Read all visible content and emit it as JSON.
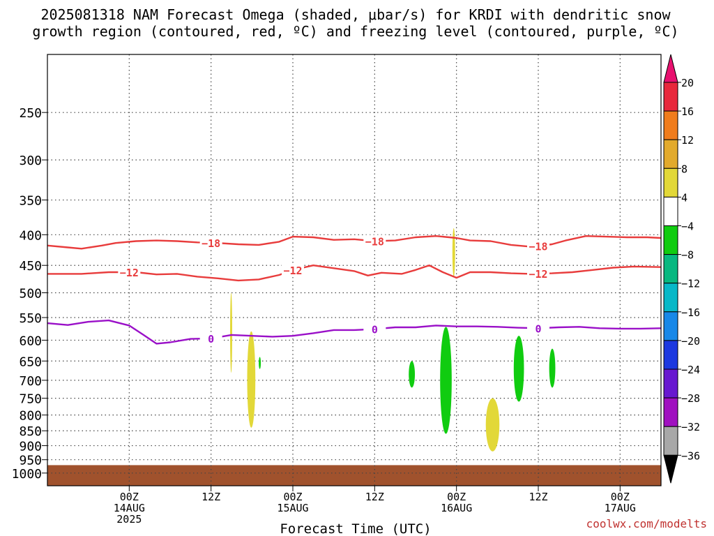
{
  "title": {
    "line1": "2025081318 NAM Forecast Omega (shaded, μbar/s) for KRDI with dendritic snow",
    "line2": "growth region (contoured, red, ºC) and freezing level (contoured, purple, ºC)"
  },
  "footer": {
    "xlabel": "Forecast Time (UTC)",
    "credit": "coolwx.com/modelts"
  },
  "chart_data": {
    "type": "heatmap",
    "title": "2025081318 NAM Forecast Omega (shaded, μbar/s) for KRDI with dendritic snow growth region (contoured, red, ºC) and freezing level (contoured, purple, ºC)",
    "xlabel": "Forecast Time (UTC)",
    "ylabel": "",
    "y_axis": {
      "scale": "log",
      "reversed": true,
      "range": [
        200,
        1050
      ],
      "units": "hPa",
      "ticks": [
        250,
        300,
        350,
        400,
        450,
        500,
        550,
        600,
        650,
        700,
        750,
        800,
        850,
        900,
        950,
        1000
      ]
    },
    "x_axis": {
      "range": [
        -6,
        84
      ],
      "units": "forecast hour",
      "ticks": [
        {
          "hour": 6,
          "label": "00Z",
          "sub1": "14AUG",
          "sub2": "2025"
        },
        {
          "hour": 18,
          "label": "12Z",
          "sub1": "",
          "sub2": ""
        },
        {
          "hour": 30,
          "label": "00Z",
          "sub1": "15AUG",
          "sub2": ""
        },
        {
          "hour": 42,
          "label": "12Z",
          "sub1": "",
          "sub2": ""
        },
        {
          "hour": 54,
          "label": "00Z",
          "sub1": "16AUG",
          "sub2": ""
        },
        {
          "hour": 66,
          "label": "12Z",
          "sub1": "",
          "sub2": ""
        },
        {
          "hour": 78,
          "label": "00Z",
          "sub1": "17AUG",
          "sub2": ""
        }
      ]
    },
    "grid": true,
    "colorbar": {
      "levels": [
        "20",
        "16",
        "12",
        "8",
        "4",
        "−4",
        "−8",
        "−12",
        "−16",
        "−20",
        "−24",
        "−28",
        "−32",
        "−36"
      ],
      "colors": [
        "#e8106f",
        "#e8283c",
        "#f07c1c",
        "#e2aa2c",
        "#e2d838",
        "#ffffff",
        "#10cc10",
        "#08b880",
        "#08b8c8",
        "#1888e8",
        "#1c38e0",
        "#6818d0",
        "#a010c0",
        "#a8a8a8",
        "#000000"
      ]
    },
    "contours": [
      {
        "name": "-18",
        "color": "#e83c3c",
        "labels": [
          "−18",
          "−18",
          "−18"
        ],
        "points": [
          [
            -6,
            417
          ],
          [
            -3,
            420
          ],
          [
            -1,
            422
          ],
          [
            2,
            417
          ],
          [
            4,
            413
          ],
          [
            7,
            410
          ],
          [
            10,
            409
          ],
          [
            13,
            410
          ],
          [
            16,
            412
          ],
          [
            19,
            413
          ],
          [
            22,
            415
          ],
          [
            25,
            416
          ],
          [
            28,
            411
          ],
          [
            30,
            403
          ],
          [
            33,
            404
          ],
          [
            36,
            408
          ],
          [
            39,
            407
          ],
          [
            42,
            410
          ],
          [
            45,
            409
          ],
          [
            48,
            404
          ],
          [
            51,
            402
          ],
          [
            54,
            405
          ],
          [
            56,
            409
          ],
          [
            59,
            410
          ],
          [
            62,
            416
          ],
          [
            65,
            419
          ],
          [
            68,
            415
          ],
          [
            70,
            409
          ],
          [
            73,
            402
          ],
          [
            76,
            403
          ],
          [
            79,
            404
          ],
          [
            82,
            404
          ],
          [
            84,
            405
          ]
        ],
        "label_at": [
          18,
          42,
          66
        ]
      },
      {
        "name": "-12",
        "color": "#e83c3c",
        "labels": [
          "−12",
          "−12",
          "−12"
        ],
        "points": [
          [
            -6,
            465
          ],
          [
            -1,
            465
          ],
          [
            3,
            462
          ],
          [
            7,
            462
          ],
          [
            10,
            466
          ],
          [
            13,
            465
          ],
          [
            16,
            470
          ],
          [
            19,
            473
          ],
          [
            22,
            477
          ],
          [
            25,
            475
          ],
          [
            28,
            467
          ],
          [
            30,
            458
          ],
          [
            33,
            450
          ],
          [
            36,
            455
          ],
          [
            39,
            460
          ],
          [
            41,
            468
          ],
          [
            43,
            463
          ],
          [
            46,
            465
          ],
          [
            48,
            458
          ],
          [
            50,
            450
          ],
          [
            52,
            462
          ],
          [
            54,
            472
          ],
          [
            56,
            462
          ],
          [
            59,
            462
          ],
          [
            62,
            464
          ],
          [
            65,
            465
          ],
          [
            68,
            464
          ],
          [
            71,
            462
          ],
          [
            74,
            458
          ],
          [
            77,
            454
          ],
          [
            80,
            452
          ],
          [
            84,
            453
          ]
        ],
        "label_at": [
          6,
          30,
          66
        ]
      },
      {
        "name": "0",
        "color": "#9a10c8",
        "labels": [
          "0",
          "0",
          "0"
        ],
        "points": [
          [
            -6,
            562
          ],
          [
            -3,
            566
          ],
          [
            0,
            559
          ],
          [
            3,
            556
          ],
          [
            6,
            567
          ],
          [
            8,
            587
          ],
          [
            10,
            608
          ],
          [
            12,
            605
          ],
          [
            15,
            597
          ],
          [
            18,
            596
          ],
          [
            21,
            588
          ],
          [
            24,
            590
          ],
          [
            27,
            592
          ],
          [
            30,
            590
          ],
          [
            33,
            584
          ],
          [
            36,
            577
          ],
          [
            39,
            577
          ],
          [
            42,
            575
          ],
          [
            45,
            571
          ],
          [
            48,
            571
          ],
          [
            51,
            567
          ],
          [
            54,
            569
          ],
          [
            57,
            569
          ],
          [
            60,
            570
          ],
          [
            63,
            572
          ],
          [
            66,
            573
          ],
          [
            69,
            571
          ],
          [
            72,
            570
          ],
          [
            75,
            573
          ],
          [
            78,
            574
          ],
          [
            81,
            574
          ],
          [
            84,
            573
          ]
        ],
        "label_at": [
          18,
          42,
          66
        ]
      }
    ],
    "shaded_regions": [
      {
        "class": "4 to 8",
        "color": "#e2d838",
        "x": [
          20.8,
          21.1
        ],
        "p": [
          500,
          680
        ]
      },
      {
        "class": "4 to 8",
        "color": "#e2d838",
        "x": [
          23.3,
          24.5
        ],
        "p": [
          580,
          840
        ]
      },
      {
        "class": "4 to 8",
        "color": "#e2d838",
        "x": [
          53.4,
          53.8
        ],
        "p": [
          390,
          470
        ]
      },
      {
        "class": "4 to 8",
        "color": "#e2d838",
        "x": [
          58.3,
          60.3
        ],
        "p": [
          750,
          920
        ]
      },
      {
        "class": "-4 to -8",
        "color": "#10cc10",
        "x": [
          25.0,
          25.3
        ],
        "p": [
          640,
          670
        ]
      },
      {
        "class": "-4 to -8",
        "color": "#10cc10",
        "x": [
          47.0,
          47.9
        ],
        "p": [
          650,
          720
        ]
      },
      {
        "class": "-4 to -8",
        "color": "#10cc10",
        "x": [
          51.6,
          53.3
        ],
        "p": [
          570,
          860
        ]
      },
      {
        "class": "-4 to -8",
        "color": "#10cc10",
        "x": [
          62.4,
          63.9
        ],
        "p": [
          590,
          760
        ]
      },
      {
        "class": "-4 to -8",
        "color": "#10cc10",
        "x": [
          67.6,
          68.5
        ],
        "p": [
          620,
          720
        ]
      }
    ],
    "below_ground": {
      "color": "#a0522d",
      "p_from": 970
    }
  }
}
